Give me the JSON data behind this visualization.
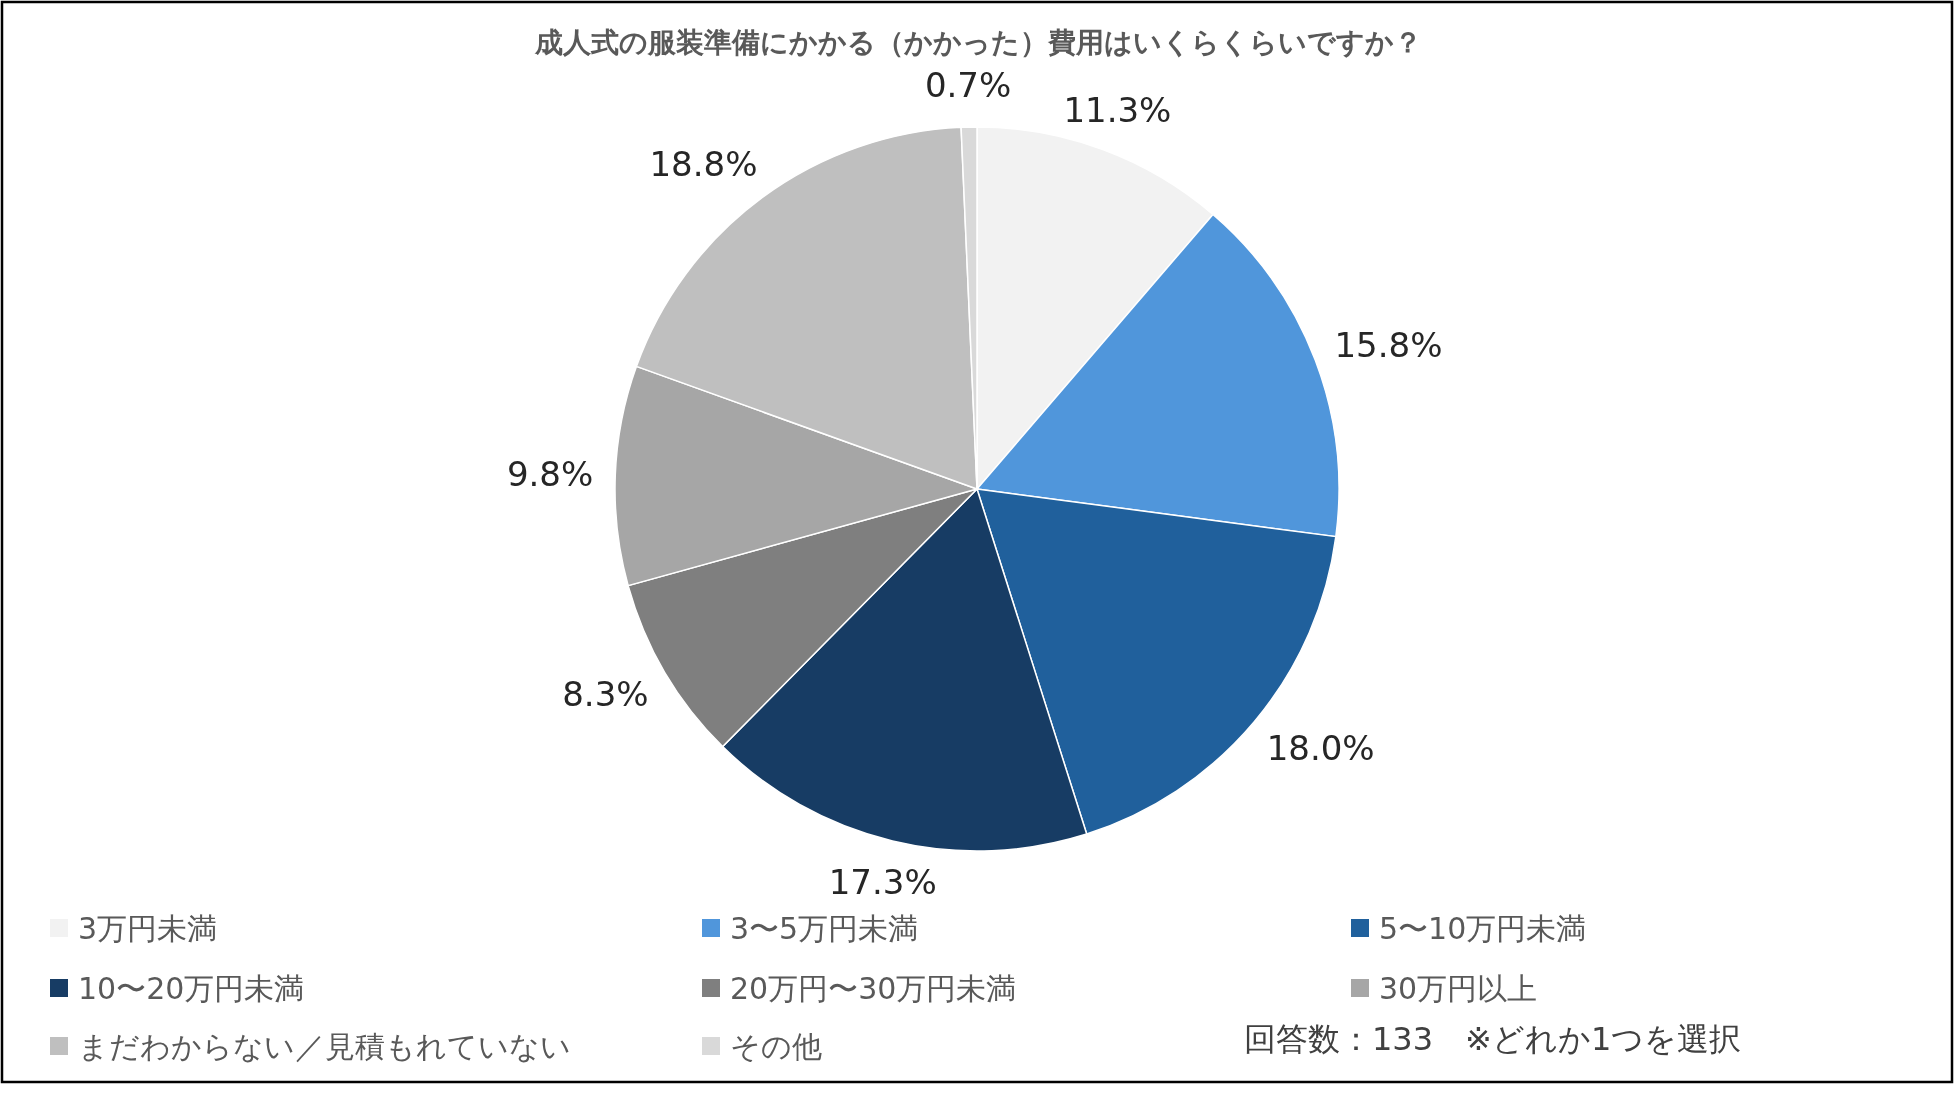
{
  "chart_data": {
    "type": "pie",
    "title": "成人式の服装準備にかかる（かかった）費用はいくらくらいですか？",
    "categories": [
      "3万円未満",
      "3〜5万円未満",
      "5〜10万円未満",
      "10〜20万円未満",
      "20万円〜30万円未満",
      "30万円以上",
      "まだわからない／見積もれていない",
      "その他"
    ],
    "values": [
      11.3,
      15.8,
      18.0,
      17.3,
      8.3,
      9.8,
      18.8,
      0.7
    ],
    "colors": [
      "#f2f2f2",
      "#5096db",
      "#20609c",
      "#173c64",
      "#7f7f7f",
      "#a6a6a6",
      "#bfbfbf",
      "#d9d9d9"
    ],
    "value_labels": [
      "11.3%",
      "15.8%",
      "18.0%",
      "17.3%",
      "8.3%",
      "9.8%",
      "18.8%",
      "0.7%"
    ],
    "legend": "bottom",
    "annotations": [
      "回答数：133　※どれか1つを選択"
    ]
  }
}
